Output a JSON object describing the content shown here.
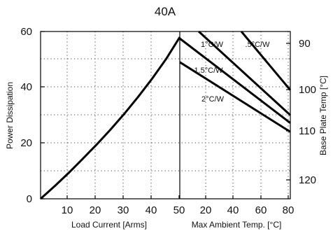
{
  "chart_data": {
    "type": "line",
    "title": "40A",
    "grid": true,
    "left_panel": {
      "xlabel": "Load Current  [Arms]",
      "ylabel": "Power Dissipation",
      "xlim": [
        0,
        50
      ],
      "ylim": [
        0,
        60
      ],
      "x_ticks": [
        "10",
        "20",
        "30",
        "40",
        "50"
      ],
      "y_ticks": [
        "0",
        "20",
        "40",
        "60"
      ],
      "series": [
        {
          "x": [
            0,
            5,
            10,
            15,
            20,
            25,
            30,
            35,
            40,
            45,
            50
          ],
          "y": [
            0,
            4.5,
            9.2,
            14.2,
            19.3,
            24.7,
            30.4,
            36.5,
            43.0,
            50.0,
            58.0
          ]
        }
      ]
    },
    "right_panel": {
      "xlabel": "Max Ambient Temp. [°C]",
      "ylabel": "Base Plate Temp [°C]",
      "xlim": [
        10,
        80
      ],
      "y_ticks": [
        "90",
        "100",
        "110",
        "120"
      ],
      "series": [
        {
          "name": "1°C/W",
          "x": [
            22,
            80
          ],
          "y": [
            60,
            30.0
          ]
        },
        {
          "name": ".5°C/W",
          "x": [
            49,
            80
          ],
          "y": [
            60,
            39.0
          ]
        },
        {
          "name": "1.5°C/W",
          "x": [
            10,
            80
          ],
          "y": [
            57.5,
            27.2
          ]
        },
        {
          "name": "2°C/W",
          "x": [
            10,
            80
          ],
          "y": [
            49.0,
            24.0
          ]
        }
      ]
    }
  }
}
